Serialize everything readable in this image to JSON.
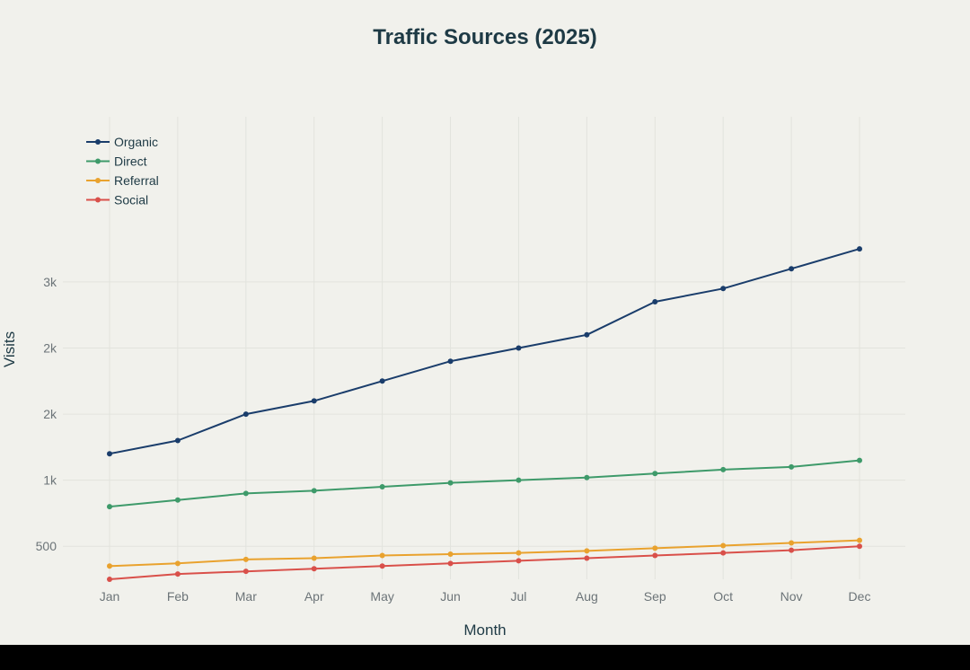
{
  "chart_data": {
    "type": "line",
    "title": "Traffic Sources (2025)",
    "xlabel": "Month",
    "ylabel": "Visits",
    "categories": [
      "Jan",
      "Feb",
      "Mar",
      "Apr",
      "May",
      "Jun",
      "Jul",
      "Aug",
      "Sep",
      "Oct",
      "Nov",
      "Dec"
    ],
    "y_ticks": [
      {
        "value": 500,
        "label": "500"
      },
      {
        "value": 1000,
        "label": "1k"
      },
      {
        "value": 1500,
        "label": "2k"
      },
      {
        "value": 2000,
        "label": "2k"
      },
      {
        "value": 2500,
        "label": "3k"
      }
    ],
    "ylim": [
      250,
      3750
    ],
    "grid": true,
    "legend_position": "top-left",
    "series": [
      {
        "name": "Organic",
        "color": "#1a3d6b",
        "values": [
          1200,
          1300,
          1500,
          1600,
          1750,
          1900,
          2000,
          2100,
          2350,
          2450,
          2600,
          2750
        ]
      },
      {
        "name": "Direct",
        "color": "#3e9a6a",
        "values": [
          800,
          850,
          900,
          920,
          950,
          980,
          1000,
          1020,
          1050,
          1080,
          1100,
          1150
        ]
      },
      {
        "name": "Referral",
        "color": "#e9a22e",
        "values": [
          350,
          370,
          400,
          410,
          430,
          440,
          450,
          465,
          485,
          505,
          525,
          545
        ]
      },
      {
        "name": "Social",
        "color": "#d9504a",
        "values": [
          250,
          290,
          310,
          330,
          350,
          370,
          390,
          410,
          430,
          450,
          470,
          500
        ]
      }
    ]
  }
}
